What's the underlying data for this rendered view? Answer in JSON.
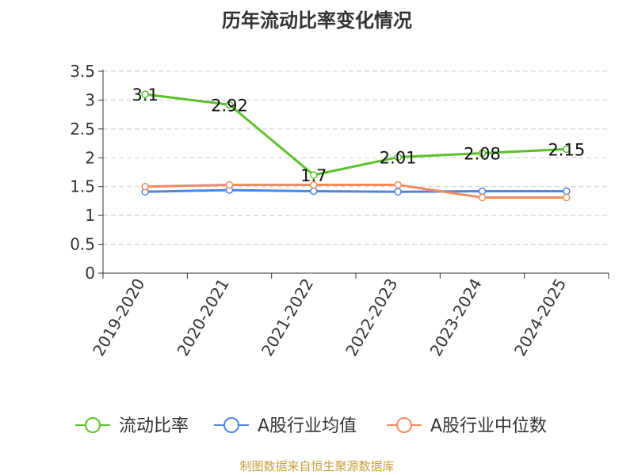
{
  "title": "历年流动比率变化情况",
  "source": "制图数据来自恒生聚源数据库",
  "chart_data": {
    "type": "line",
    "categories": [
      "2019-2020",
      "2020-2021",
      "2021-2022",
      "2022-2023",
      "2023-2024",
      "2024-2025"
    ],
    "ylim": [
      0,
      3.5
    ],
    "yticks": [
      "0",
      "0.5",
      "1",
      "1.5",
      "2",
      "2.5",
      "3",
      "3.5"
    ],
    "grid": true,
    "legend_position": "bottom",
    "series": [
      {
        "name": "流动比率",
        "color": "#5bc12a",
        "values": [
          3.1,
          2.92,
          1.7,
          2.01,
          2.08,
          2.15
        ],
        "labels": [
          "3.1",
          "2.92",
          "1.7",
          "2.01",
          "2.08",
          "2.15"
        ]
      },
      {
        "name": "A股行业均值",
        "color": "#4f86de",
        "values": [
          1.41,
          1.44,
          1.42,
          1.41,
          1.42,
          1.42
        ]
      },
      {
        "name": "A股行业中位数",
        "color": "#f28c5e",
        "values": [
          1.5,
          1.53,
          1.53,
          1.53,
          1.31,
          1.31
        ]
      }
    ]
  }
}
